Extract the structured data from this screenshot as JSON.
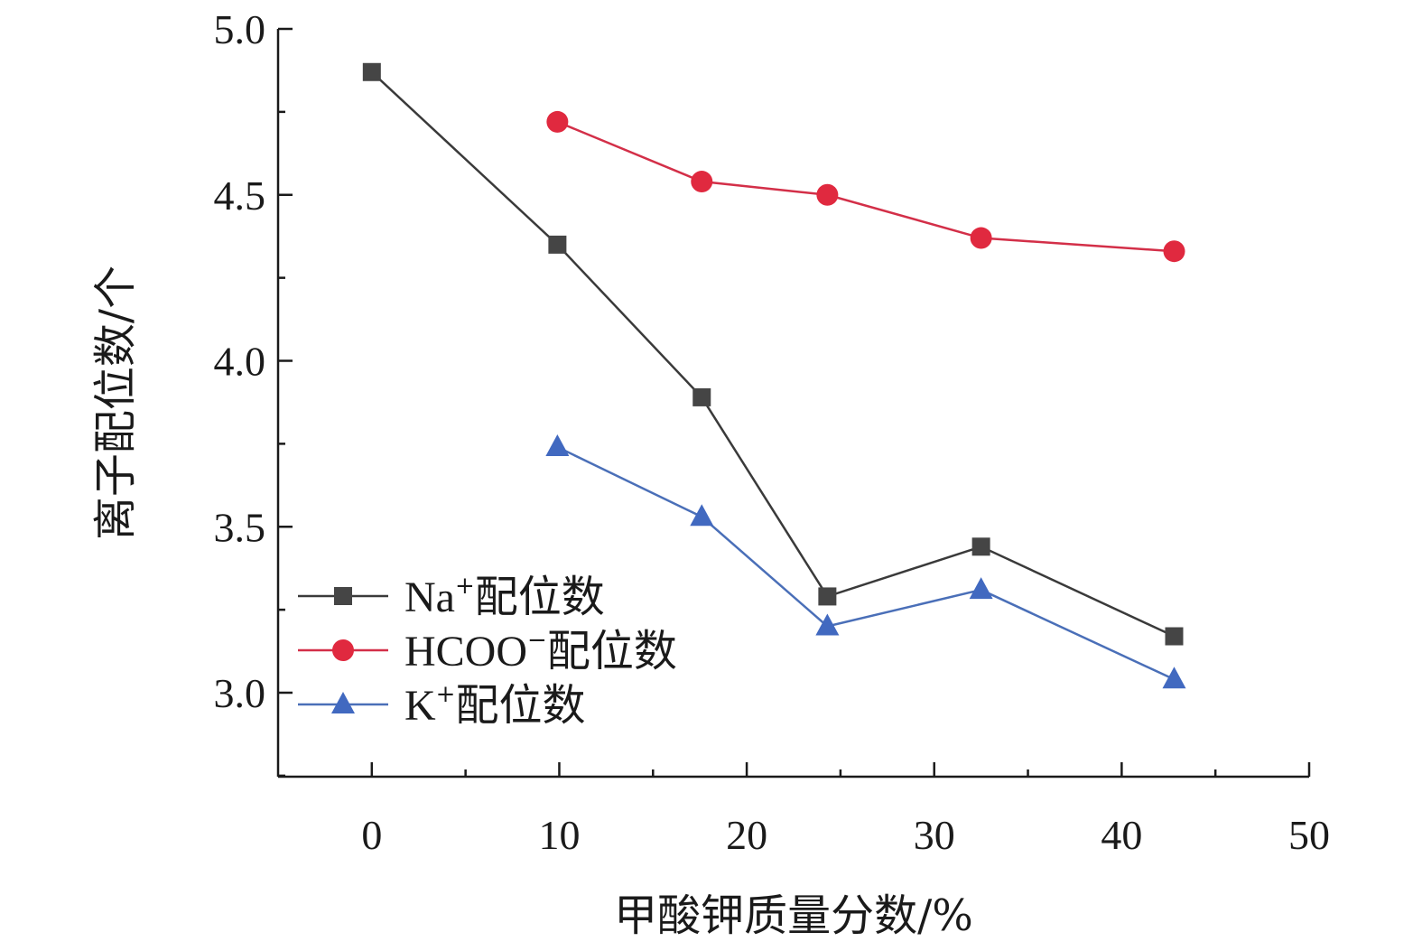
{
  "chart_data": {
    "type": "line",
    "xlabel": "甲酸钾质量分数/%",
    "ylabel": "离子配位数/个",
    "xlim": [
      -5,
      50
    ],
    "ylim": [
      2.75,
      5.0
    ],
    "xticks": [
      0,
      10,
      20,
      30,
      40,
      50
    ],
    "xtick_labels": [
      "0",
      "10",
      "20",
      "30",
      "40",
      "50"
    ],
    "yticks": [
      3.0,
      3.5,
      4.0,
      4.5,
      5.0
    ],
    "ytick_labels": [
      "3.0",
      "3.5",
      "4.0",
      "4.5",
      "5.0"
    ],
    "legend_position": "lower-left",
    "series": [
      {
        "name": "配位数",
        "legend_prefix": "Na",
        "legend_sup": "+",
        "marker": "square",
        "color": "#3a3a3a",
        "marker_color": "#454545",
        "x": [
          0,
          9.9,
          17.6,
          24.3,
          32.5,
          42.8
        ],
        "y": [
          4.87,
          4.35,
          3.89,
          3.29,
          3.44,
          3.17
        ]
      },
      {
        "name": "配位数",
        "legend_prefix": "HCOO",
        "legend_sup": "−",
        "marker": "circle",
        "color": "#d32f48",
        "marker_color": "#e0293f",
        "x": [
          9.9,
          17.6,
          24.3,
          32.5,
          42.8
        ],
        "y": [
          4.72,
          4.54,
          4.5,
          4.37,
          4.33
        ]
      },
      {
        "name": "配位数",
        "legend_prefix": "K",
        "legend_sup": "+",
        "marker": "triangle",
        "color": "#4a6fb8",
        "marker_color": "#4169c0",
        "x": [
          9.9,
          17.6,
          24.3,
          32.5,
          42.8
        ],
        "y": [
          3.74,
          3.53,
          3.2,
          3.31,
          3.04
        ]
      }
    ]
  }
}
